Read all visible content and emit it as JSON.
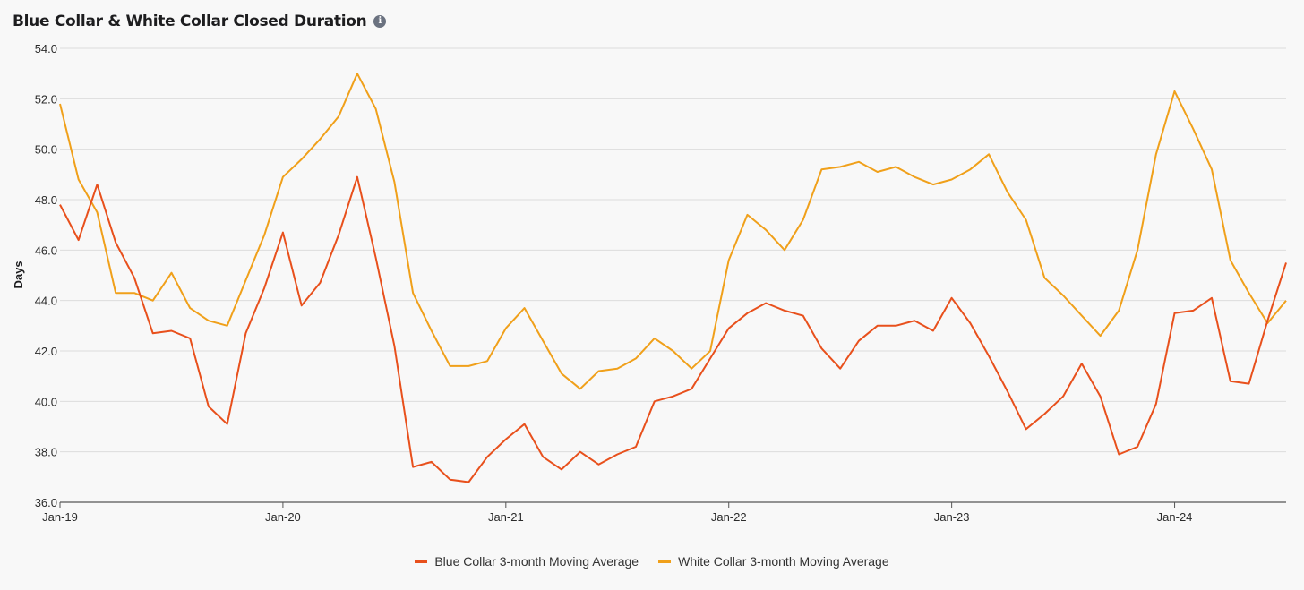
{
  "header": {
    "title": "Blue Collar & White Collar Closed Duration",
    "info_icon": "info-icon"
  },
  "chart_data": {
    "type": "line",
    "title": "Blue Collar & White Collar Closed Duration",
    "xlabel": "",
    "ylabel": "Days",
    "ylim": [
      36,
      54
    ],
    "y_ticks": [
      "36.0",
      "38.0",
      "40.0",
      "42.0",
      "44.0",
      "46.0",
      "48.0",
      "50.0",
      "52.0",
      "54.0"
    ],
    "x_tick_labels": [
      "Jan-19",
      "Jan-20",
      "Jan-21",
      "Jan-22",
      "Jan-23",
      "Jan-24"
    ],
    "x": [
      "2019-01",
      "2019-02",
      "2019-03",
      "2019-04",
      "2019-05",
      "2019-06",
      "2019-07",
      "2019-08",
      "2019-09",
      "2019-10",
      "2019-11",
      "2019-12",
      "2020-01",
      "2020-02",
      "2020-03",
      "2020-04",
      "2020-05",
      "2020-06",
      "2020-07",
      "2020-08",
      "2020-09",
      "2020-10",
      "2020-11",
      "2020-12",
      "2021-01",
      "2021-02",
      "2021-03",
      "2021-04",
      "2021-05",
      "2021-06",
      "2021-07",
      "2021-08",
      "2021-09",
      "2021-10",
      "2021-11",
      "2021-12",
      "2022-01",
      "2022-02",
      "2022-03",
      "2022-04",
      "2022-05",
      "2022-06",
      "2022-07",
      "2022-08",
      "2022-09",
      "2022-10",
      "2022-11",
      "2022-12",
      "2023-01",
      "2023-02",
      "2023-03",
      "2023-04",
      "2023-05",
      "2023-06",
      "2023-07",
      "2023-08",
      "2023-09",
      "2023-10",
      "2023-11",
      "2023-12",
      "2024-01",
      "2024-02",
      "2024-03",
      "2024-04",
      "2024-05",
      "2024-06",
      "2024-07"
    ],
    "grid": true,
    "legend_position": "bottom-center",
    "series": [
      {
        "name": "Blue Collar 3-month Moving Average",
        "color": "#e8501c",
        "values": [
          47.8,
          46.4,
          48.6,
          46.3,
          44.9,
          42.7,
          42.8,
          42.5,
          39.8,
          39.1,
          42.7,
          44.5,
          46.7,
          43.8,
          44.7,
          46.6,
          48.9,
          45.7,
          42.2,
          37.4,
          37.6,
          36.9,
          36.8,
          37.8,
          38.5,
          39.1,
          37.8,
          37.3,
          38.0,
          37.5,
          37.9,
          38.2,
          40.0,
          40.2,
          40.5,
          41.7,
          42.9,
          43.5,
          43.9,
          43.6,
          43.4,
          42.1,
          41.3,
          42.4,
          43.0,
          43.0,
          43.2,
          42.8,
          44.1,
          43.1,
          41.8,
          40.4,
          38.9,
          39.5,
          40.2,
          41.5,
          40.2,
          37.9,
          38.2,
          39.9,
          43.5,
          43.6,
          44.1,
          40.8,
          40.7,
          43.2,
          45.5
        ]
      },
      {
        "name": "White Collar 3-month Moving Average",
        "color": "#f0a01a",
        "values": [
          51.8,
          48.8,
          47.5,
          44.3,
          44.3,
          44.0,
          45.1,
          43.7,
          43.2,
          43.0,
          44.8,
          46.6,
          48.9,
          49.6,
          50.4,
          51.3,
          53.0,
          51.6,
          48.7,
          44.3,
          42.8,
          41.4,
          41.4,
          41.6,
          42.9,
          43.7,
          42.4,
          41.1,
          40.5,
          41.2,
          41.3,
          41.7,
          42.5,
          42.0,
          41.3,
          42.0,
          45.6,
          47.4,
          46.8,
          46.0,
          47.2,
          49.2,
          49.3,
          49.5,
          49.1,
          49.3,
          48.9,
          48.6,
          48.8,
          49.2,
          49.8,
          48.3,
          47.2,
          44.9,
          44.2,
          43.4,
          42.6,
          43.6,
          46.0,
          49.8,
          52.3,
          50.8,
          49.2,
          45.6,
          44.3,
          43.1,
          44.0
        ]
      }
    ]
  }
}
